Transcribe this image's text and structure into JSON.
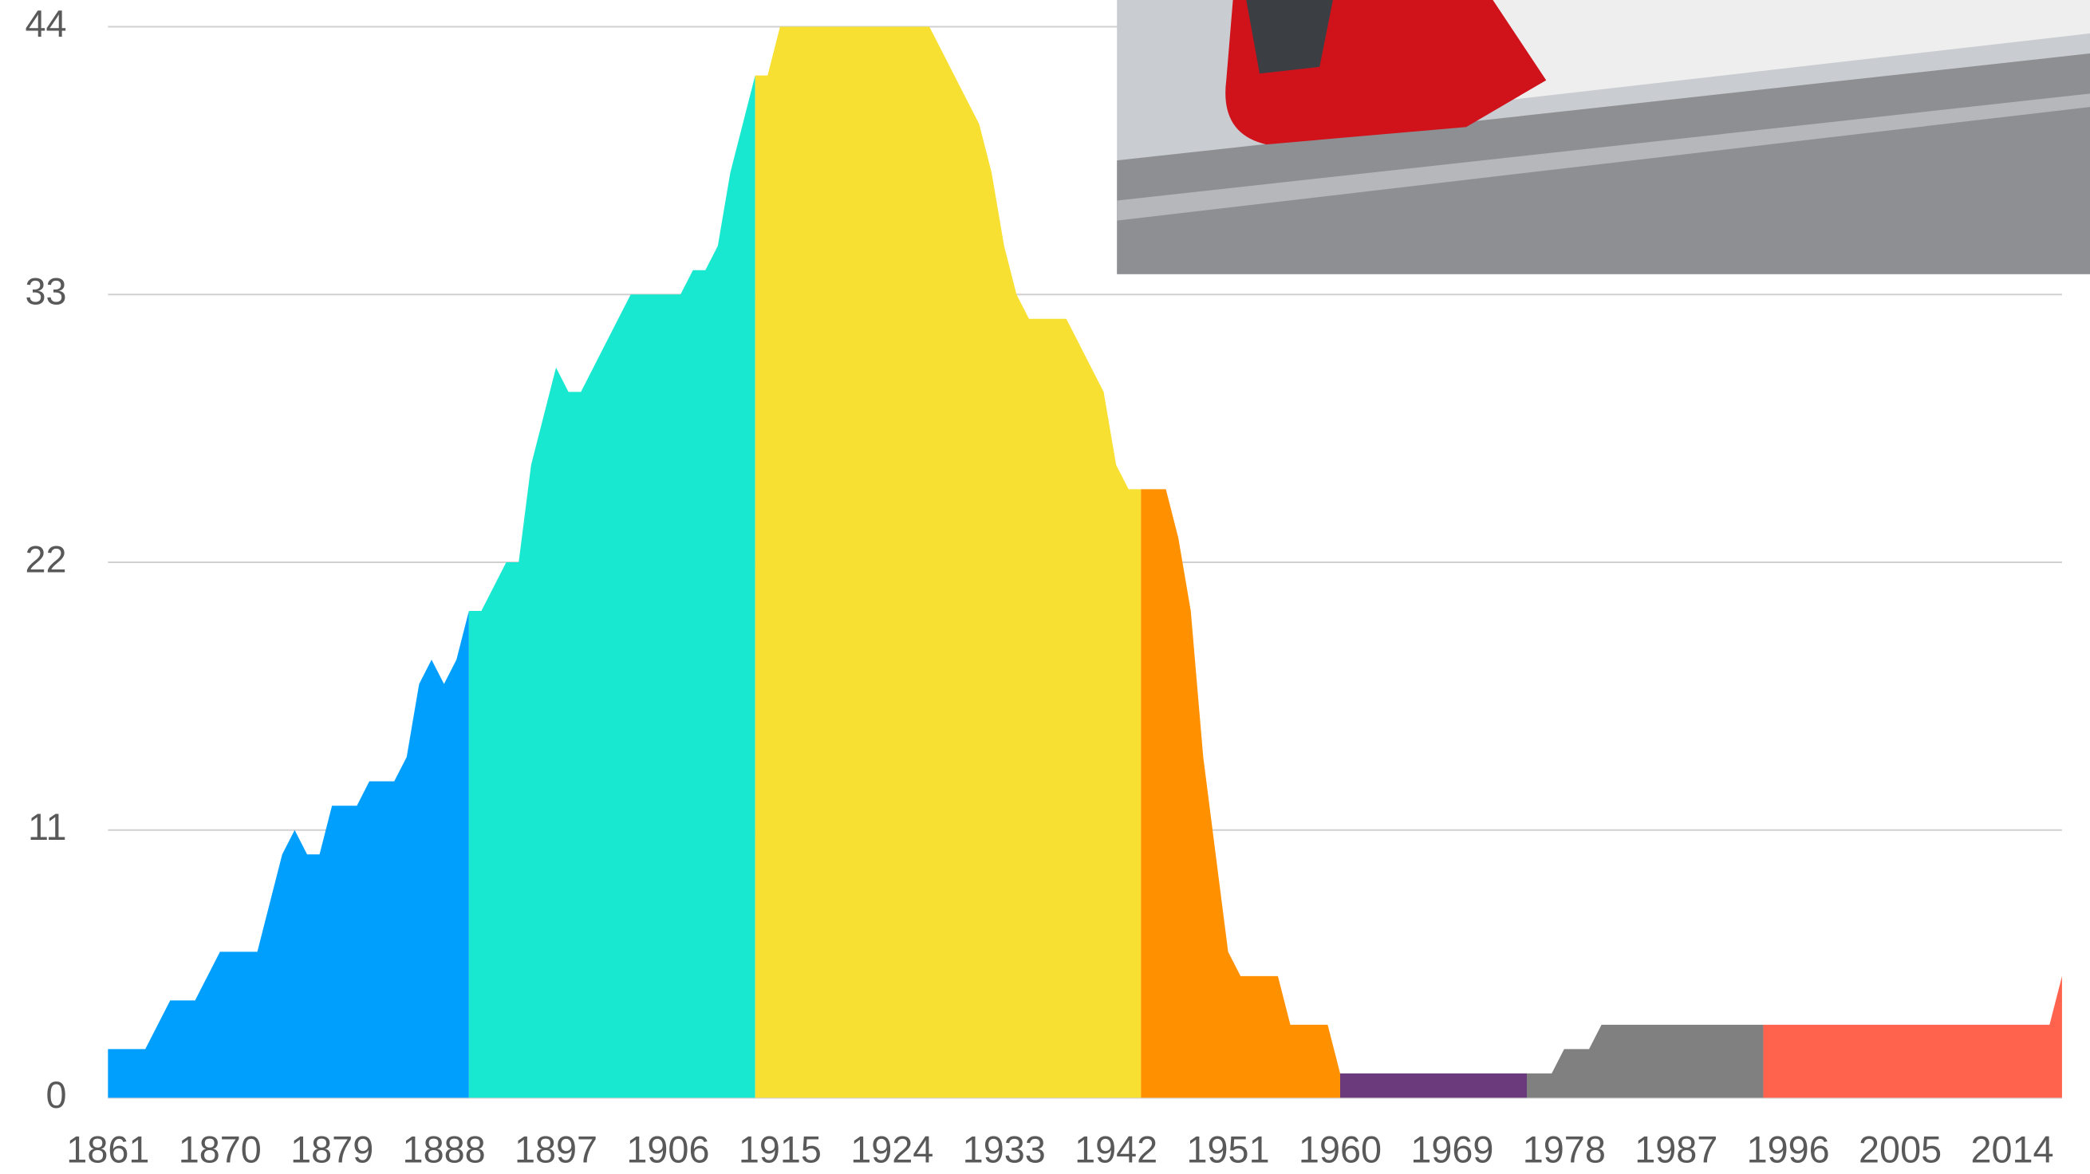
{
  "chart_data": {
    "type": "area",
    "xlim": [
      1861,
      2018
    ],
    "xticks": [
      1861,
      1870,
      1879,
      1888,
      1897,
      1906,
      1915,
      1924,
      1933,
      1942,
      1951,
      1960,
      1969,
      1978,
      1987,
      1996,
      2005,
      2014
    ],
    "ylim": [
      0,
      44
    ],
    "yticks": [
      0,
      11,
      22,
      33,
      44
    ],
    "grid": true,
    "series": [
      {
        "color": "#009ffd",
        "x": [
          1861,
          1862,
          1863,
          1864,
          1865,
          1866,
          1867,
          1868,
          1869,
          1870,
          1871,
          1872,
          1873,
          1874,
          1875,
          1876,
          1877,
          1878,
          1879,
          1880,
          1881,
          1882,
          1883,
          1884,
          1885,
          1886,
          1887,
          1888,
          1889,
          1890
        ],
        "values": [
          2,
          2,
          2,
          2,
          3,
          4,
          4,
          4,
          5,
          6,
          6,
          6,
          6,
          8,
          10,
          11,
          10,
          10,
          12,
          12,
          12,
          13,
          13,
          13,
          14,
          17,
          18,
          17,
          18,
          20
        ]
      },
      {
        "color": "#19e8d0",
        "x": [
          1890,
          1891,
          1892,
          1893,
          1894,
          1895,
          1896,
          1897,
          1898,
          1899,
          1900,
          1901,
          1902,
          1903,
          1904,
          1905,
          1906,
          1907,
          1908,
          1909,
          1910,
          1911,
          1912,
          1913
        ],
        "values": [
          20,
          20,
          21,
          22,
          22,
          26,
          28,
          30,
          29,
          29,
          30,
          31,
          32,
          33,
          33,
          33,
          33,
          33,
          34,
          34,
          35,
          38,
          40,
          42
        ]
      },
      {
        "color": "#f7e032",
        "x": [
          1913,
          1914,
          1915,
          1916,
          1917,
          1918,
          1919,
          1920,
          1921,
          1922,
          1923,
          1924,
          1925,
          1926,
          1927,
          1928,
          1929,
          1930,
          1931,
          1932,
          1933,
          1934,
          1935,
          1936,
          1937,
          1938,
          1939,
          1940,
          1941,
          1942,
          1943,
          1944
        ],
        "values": [
          42,
          42,
          44,
          44,
          44,
          44,
          44,
          44,
          44,
          44,
          44,
          44,
          44,
          44,
          44,
          43,
          42,
          41,
          40,
          38,
          35,
          33,
          32,
          32,
          32,
          32,
          31,
          30,
          29,
          26,
          25,
          25
        ]
      },
      {
        "color": "#ff9100",
        "x": [
          1944,
          1945,
          1946,
          1947,
          1948,
          1949,
          1950,
          1951,
          1952,
          1953,
          1954,
          1955,
          1956,
          1957,
          1958,
          1959,
          1960
        ],
        "values": [
          25,
          25,
          25,
          23,
          20,
          14,
          10,
          6,
          5,
          5,
          5,
          5,
          3,
          3,
          3,
          3,
          1
        ]
      },
      {
        "color": "#6b3a7c",
        "x": [
          1960,
          1961,
          1962,
          1963,
          1964,
          1965,
          1966,
          1967,
          1968,
          1969,
          1970,
          1971,
          1972,
          1973,
          1974,
          1975
        ],
        "values": [
          1,
          1,
          1,
          1,
          1,
          1,
          1,
          1,
          1,
          1,
          1,
          1,
          1,
          1,
          1,
          1
        ]
      },
      {
        "color": "#808080",
        "x": [
          1975,
          1976,
          1977,
          1978,
          1979,
          1980,
          1981,
          1982,
          1983,
          1984,
          1985,
          1986,
          1987,
          1988,
          1989,
          1990,
          1991,
          1992,
          1993,
          1994
        ],
        "values": [
          1,
          1,
          1,
          2,
          2,
          2,
          3,
          3,
          3,
          3,
          3,
          3,
          3,
          3,
          3,
          3,
          3,
          3,
          3,
          3
        ]
      },
      {
        "color": "#ff634d",
        "x": [
          1994,
          1995,
          1996,
          1997,
          1998,
          1999,
          2000,
          2001,
          2002,
          2003,
          2004,
          2005,
          2006,
          2007,
          2008,
          2009,
          2010,
          2011,
          2012,
          2013,
          2014,
          2015,
          2016,
          2017,
          2018
        ],
        "values": [
          3,
          3,
          3,
          3,
          3,
          3,
          3,
          3,
          3,
          3,
          3,
          3,
          3,
          3,
          3,
          3,
          3,
          3,
          3,
          3,
          3,
          3,
          3,
          3,
          5
        ]
      }
    ]
  }
}
